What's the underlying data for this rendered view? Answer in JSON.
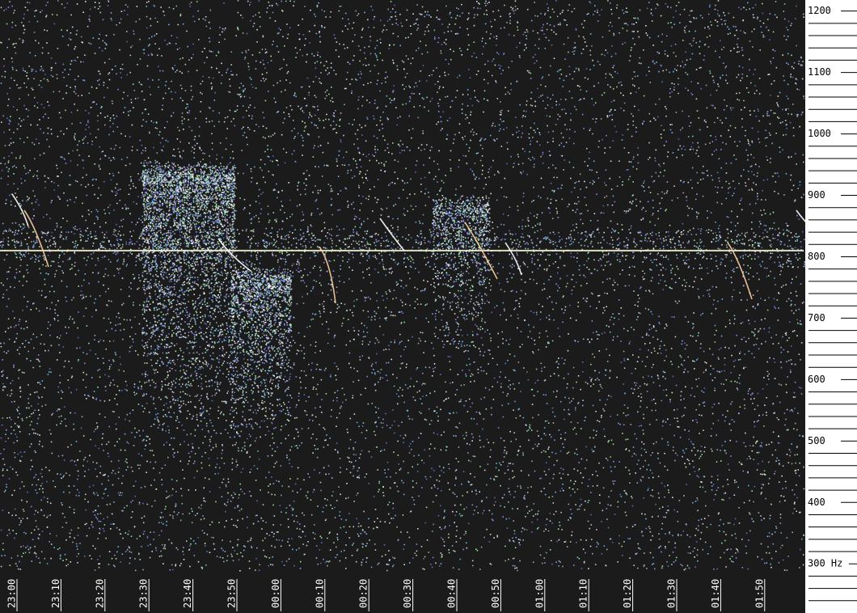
{
  "chart_data": {
    "type": "spectrogram",
    "x": [
      "23:00",
      "23:10",
      "23:20",
      "23:30",
      "23:40",
      "23:50",
      "00:00",
      "00:10",
      "00:20",
      "00:30",
      "00:40",
      "00:50",
      "01:00",
      "01:10",
      "01:20",
      "01:30",
      "01:40",
      "01:50"
    ],
    "ylim": [
      220,
      1218
    ],
    "yticks": [
      {
        "value": 300,
        "label": "300 Hz"
      },
      400,
      500,
      600,
      700,
      800,
      900,
      1000,
      1100,
      1200
    ],
    "yminorticks": [
      240,
      260,
      280,
      320,
      340,
      360,
      380,
      420,
      440,
      460,
      480,
      520,
      540,
      560,
      580,
      620,
      640,
      660,
      680,
      720,
      740,
      760,
      780,
      820,
      840,
      860,
      880,
      920,
      940,
      960,
      980,
      1020,
      1040,
      1060,
      1080,
      1120,
      1140,
      1160,
      1180
    ]
  }
}
